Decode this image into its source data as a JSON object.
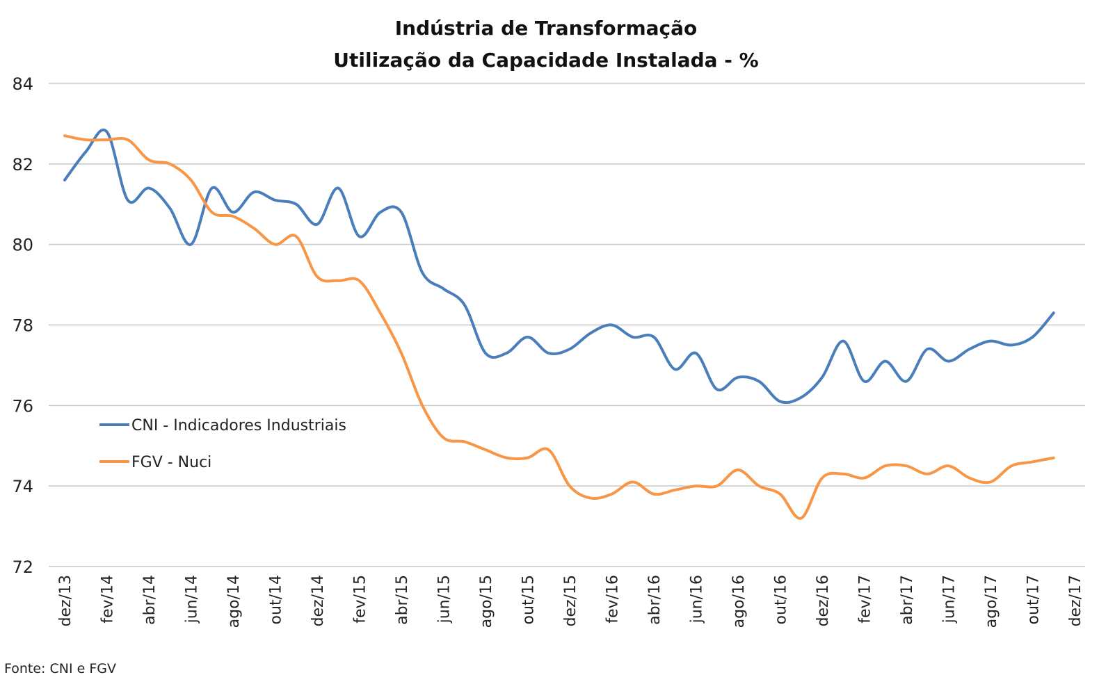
{
  "chart_data": {
    "type": "line",
    "title": [
      "Indústria de Transformação",
      "Utilização da Capacidade Instalada - %"
    ],
    "xlabel": "",
    "ylabel": "",
    "ylim": [
      72,
      84
    ],
    "yticks": [
      72,
      74,
      76,
      78,
      80,
      82,
      84
    ],
    "grid": true,
    "legend_position": "left-middle",
    "x": [
      "dez/13",
      "jan/14",
      "fev/14",
      "mar/14",
      "abr/14",
      "mai/14",
      "jun/14",
      "jul/14",
      "ago/14",
      "set/14",
      "out/14",
      "nov/14",
      "dez/14",
      "jan/15",
      "fev/15",
      "mar/15",
      "abr/15",
      "mai/15",
      "jun/15",
      "jul/15",
      "ago/15",
      "set/15",
      "out/15",
      "nov/15",
      "dez/15",
      "jan/16",
      "fev/16",
      "mar/16",
      "abr/16",
      "mai/16",
      "jun/16",
      "jul/16",
      "ago/16",
      "set/16",
      "out/16",
      "nov/16",
      "dez/16",
      "jan/17",
      "fev/17",
      "mar/17",
      "abr/17",
      "mai/17",
      "jun/17",
      "jul/17",
      "ago/17",
      "set/17",
      "out/17",
      "nov/17",
      "dez/17"
    ],
    "xtick_labels": [
      "dez/13",
      "fev/14",
      "abr/14",
      "jun/14",
      "ago/14",
      "out/14",
      "dez/14",
      "fev/15",
      "abr/15",
      "jun/15",
      "ago/15",
      "out/15",
      "dez/15",
      "fev/16",
      "abr/16",
      "jun/16",
      "ago/16",
      "out/16",
      "dez/16",
      "fev/17",
      "abr/17",
      "jun/17",
      "ago/17",
      "out/17",
      "dez/17"
    ],
    "series": [
      {
        "name": "CNI - Indicadores Industriais",
        "color": "#4a7ebb",
        "values": [
          81.6,
          82.3,
          82.8,
          81.1,
          81.4,
          80.9,
          80.0,
          81.4,
          80.8,
          81.3,
          81.1,
          81.0,
          80.5,
          81.4,
          80.2,
          80.8,
          80.8,
          79.3,
          78.9,
          78.5,
          77.3,
          77.3,
          77.7,
          77.3,
          77.4,
          77.8,
          78.0,
          77.7,
          77.7,
          76.9,
          77.3,
          76.4,
          76.7,
          76.6,
          76.1,
          76.2,
          76.7,
          77.6,
          76.6,
          77.1,
          76.6,
          77.4,
          77.1,
          77.4,
          77.6,
          77.5,
          77.7,
          78.3,
          null
        ]
      },
      {
        "name": "FGV - Nuci",
        "color": "#f79646",
        "values": [
          82.7,
          82.6,
          82.6,
          82.6,
          82.1,
          82.0,
          81.6,
          80.8,
          80.7,
          80.4,
          80.0,
          80.2,
          79.2,
          79.1,
          79.1,
          78.3,
          77.3,
          76.0,
          75.2,
          75.1,
          74.9,
          74.7,
          74.7,
          74.9,
          74.0,
          73.7,
          73.8,
          74.1,
          73.8,
          73.9,
          74.0,
          74.0,
          74.4,
          74.0,
          73.8,
          73.2,
          74.2,
          74.3,
          74.2,
          74.5,
          74.5,
          74.3,
          74.5,
          74.2,
          74.1,
          74.5,
          74.6,
          74.7,
          null
        ]
      }
    ],
    "source_note": "Fonte: CNI e FGV"
  }
}
